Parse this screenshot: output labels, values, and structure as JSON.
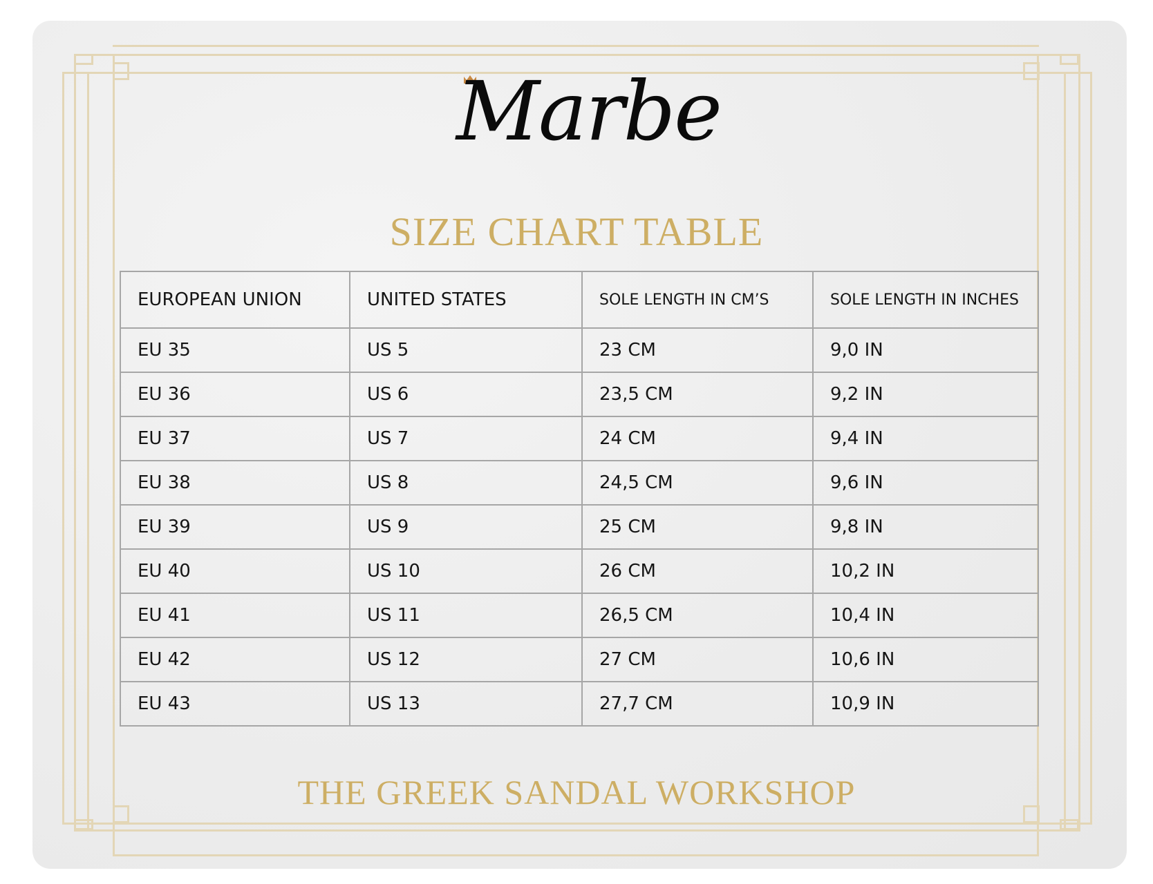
{
  "brand": {
    "logo_text": "Marbe",
    "crown_color": "#c98a45"
  },
  "title": "SIZE CHART TABLE",
  "footer": "THE GREEK SANDAL WORKSHOP",
  "colors": {
    "gold": "#cdae64",
    "frame": "#e3d6b6",
    "border": "#a6a6a6"
  },
  "table": {
    "headers": [
      "EUROPEAN UNION",
      "UNITED STATES",
      "SOLE LENGTH IN CM’S",
      "SOLE LENGTH IN INCHES"
    ],
    "rows": [
      [
        "EU 35",
        "US 5",
        "23 CM",
        "9,0 IN"
      ],
      [
        "EU 36",
        "US 6",
        "23,5 CM",
        "9,2 IN"
      ],
      [
        "EU 37",
        "US 7",
        "24 CM",
        "9,4 IN"
      ],
      [
        "EU 38",
        "US 8",
        "24,5 CM",
        "9,6 IN"
      ],
      [
        "EU 39",
        "US 9",
        "25 CM",
        "9,8 IN"
      ],
      [
        "EU 40",
        "US 10",
        "26 CM",
        "10,2 IN"
      ],
      [
        "EU 41",
        "US 11",
        "26,5 CM",
        "10,4 IN"
      ],
      [
        "EU 42",
        "US 12",
        "27 CM",
        "10,6 IN"
      ],
      [
        "EU 43",
        "US 13",
        "27,7 CM",
        "10,9 IN"
      ]
    ]
  }
}
